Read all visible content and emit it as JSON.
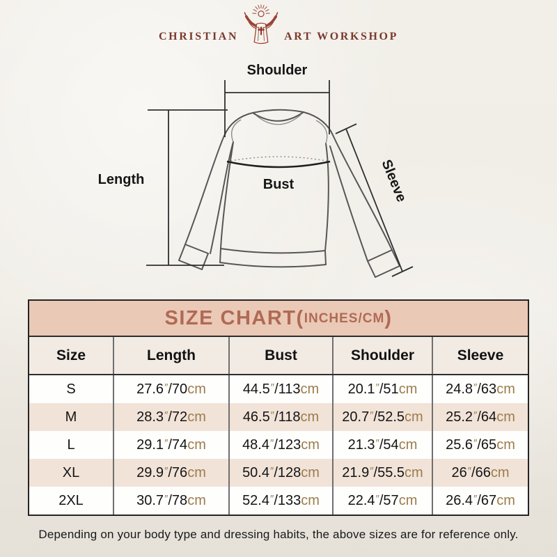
{
  "brand": {
    "left": "CHRISTIAN",
    "right": "ART WORKSHOP"
  },
  "diagram": {
    "shoulder_label": "Shoulder",
    "length_label": "Length",
    "bust_label": "Bust",
    "sleeve_label": "Sleeve"
  },
  "size_chart": {
    "title_main": "SIZE CHART(",
    "title_unit": "INCHES/CM",
    "title_close": ")",
    "columns": [
      "Size",
      "Length",
      "Bust",
      "Shoulder",
      "Sleeve"
    ],
    "unit_inch": "″",
    "unit_cm": "cm",
    "separator": "/",
    "rows": [
      {
        "size": "S",
        "length": [
          "27.6",
          "70"
        ],
        "bust": [
          "44.5",
          "113"
        ],
        "shoulder": [
          "20.1",
          "51"
        ],
        "sleeve": [
          "24.8",
          "63"
        ]
      },
      {
        "size": "M",
        "length": [
          "28.3",
          "72"
        ],
        "bust": [
          "46.5",
          "118"
        ],
        "shoulder": [
          "20.7",
          "52.5"
        ],
        "sleeve": [
          "25.2",
          "64"
        ]
      },
      {
        "size": "L",
        "length": [
          "29.1",
          "74"
        ],
        "bust": [
          "48.4",
          "123"
        ],
        "shoulder": [
          "21.3",
          "54"
        ],
        "sleeve": [
          "25.6",
          "65"
        ]
      },
      {
        "size": "XL",
        "length": [
          "29.9",
          "76"
        ],
        "bust": [
          "50.4",
          "128"
        ],
        "shoulder": [
          "21.9",
          "55.5"
        ],
        "sleeve": [
          "26",
          "66"
        ]
      },
      {
        "size": "2XL",
        "length": [
          "30.7",
          "78"
        ],
        "bust": [
          "52.4",
          "133"
        ],
        "shoulder": [
          "22.4",
          "57"
        ],
        "sleeve": [
          "26.4",
          "67"
        ]
      }
    ]
  },
  "note": "Depending on your body type and dressing habits, the above sizes are for reference only.",
  "chart_data": {
    "type": "table",
    "title": "SIZE CHART(INCHES/CM)",
    "columns": [
      "Size",
      "Length",
      "Bust",
      "Shoulder",
      "Sleeve"
    ],
    "units": "inches/cm",
    "rows_inches": [
      [
        "S",
        27.6,
        44.5,
        20.1,
        24.8
      ],
      [
        "M",
        28.3,
        46.5,
        20.7,
        25.2
      ],
      [
        "L",
        29.1,
        48.4,
        21.3,
        25.6
      ],
      [
        "XL",
        29.9,
        50.4,
        21.9,
        26
      ],
      [
        "2XL",
        30.7,
        52.4,
        22.4,
        26.4
      ]
    ],
    "rows_cm": [
      [
        "S",
        70,
        113,
        51,
        63
      ],
      [
        "M",
        72,
        118,
        52.5,
        64
      ],
      [
        "L",
        74,
        123,
        54,
        65
      ],
      [
        "XL",
        76,
        128,
        55.5,
        66
      ],
      [
        "2XL",
        78,
        133,
        57,
        67
      ]
    ]
  },
  "colors": {
    "page_bg": "#f0ede6",
    "logo_maroon": "#7a392c",
    "figure_terracotta": "#9c4434",
    "cross_red": "#8c2c1c",
    "title_bar_bg": "#eac9b7",
    "title_text": "#b06a54",
    "header_row_bg": "#f2ebe3",
    "alt_row_bg": "#f1e3d8",
    "unit_tan": "#9c7c4b",
    "table_border": "#242424"
  }
}
